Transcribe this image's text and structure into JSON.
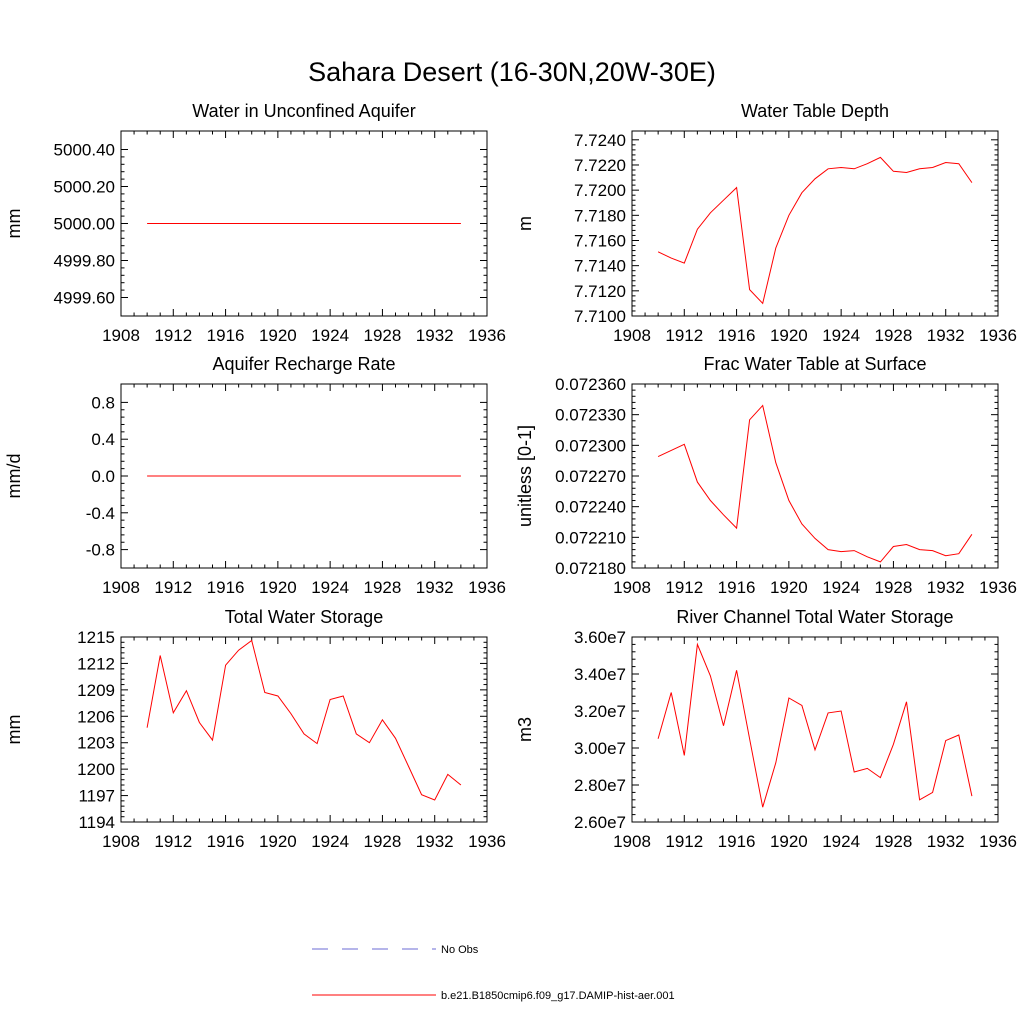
{
  "title": "Sahara Desert (16-30N,20W-30E)",
  "legend": [
    {
      "label": "No Obs",
      "color": "#6b6bd6",
      "style": "dashed"
    },
    {
      "label": "b.e21.B1850cmip6.f09_g17.DAMIP-hist-aer.001",
      "color": "#ff0000",
      "style": "solid"
    }
  ],
  "chart_data": [
    {
      "type": "line",
      "title": "Water in Unconfined Aquifer",
      "ylabel": "mm",
      "xlim": [
        1908,
        1936
      ],
      "xticks": [
        1908,
        1912,
        1916,
        1920,
        1924,
        1928,
        1932,
        1936
      ],
      "xtick_labels": [
        "1908",
        "1912",
        "1916",
        "1920",
        "1924",
        "1928",
        "1932",
        "1936"
      ],
      "ylim": [
        4999.5,
        5000.5
      ],
      "yticks": [
        4999.6,
        4999.8,
        5000.0,
        5000.2,
        5000.4
      ],
      "ytick_labels": [
        "4999.60",
        "4999.80",
        "5000.00",
        "5000.20",
        "5000.40"
      ],
      "x": [
        1910,
        1911,
        1912,
        1913,
        1914,
        1915,
        1916,
        1917,
        1918,
        1919,
        1920,
        1921,
        1922,
        1923,
        1924,
        1925,
        1926,
        1927,
        1928,
        1929,
        1930,
        1931,
        1932,
        1933,
        1934
      ],
      "series": [
        {
          "color": "#ff0000",
          "values": [
            5000.0,
            5000.0,
            5000.0,
            5000.0,
            5000.0,
            5000.0,
            5000.0,
            5000.0,
            5000.0,
            5000.0,
            5000.0,
            5000.0,
            5000.0,
            5000.0,
            5000.0,
            5000.0,
            5000.0,
            5000.0,
            5000.0,
            5000.0,
            5000.0,
            5000.0,
            5000.0,
            5000.0,
            5000.0
          ]
        }
      ]
    },
    {
      "type": "line",
      "title": "Water Table Depth",
      "ylabel": "m",
      "xlim": [
        1908,
        1936
      ],
      "xticks": [
        1908,
        1912,
        1916,
        1920,
        1924,
        1928,
        1932,
        1936
      ],
      "xtick_labels": [
        "1908",
        "1912",
        "1916",
        "1920",
        "1924",
        "1928",
        "1932",
        "1936"
      ],
      "ylim": [
        7.71,
        7.7247
      ],
      "yticks": [
        7.71,
        7.712,
        7.714,
        7.716,
        7.718,
        7.72,
        7.722,
        7.724
      ],
      "ytick_labels": [
        "7.7100",
        "7.7120",
        "7.7140",
        "7.7160",
        "7.7180",
        "7.7200",
        "7.7220",
        "7.7240"
      ],
      "x": [
        1910,
        1911,
        1912,
        1913,
        1914,
        1915,
        1916,
        1917,
        1918,
        1919,
        1920,
        1921,
        1922,
        1923,
        1924,
        1925,
        1926,
        1927,
        1928,
        1929,
        1930,
        1931,
        1932,
        1933,
        1934
      ],
      "series": [
        {
          "color": "#ff0000",
          "values": [
            7.7151,
            7.7146,
            7.7142,
            7.7169,
            7.7182,
            7.7192,
            7.7202,
            7.7121,
            7.711,
            7.7154,
            7.718,
            7.7198,
            7.7209,
            7.7217,
            7.7218,
            7.7217,
            7.7221,
            7.7226,
            7.7215,
            7.7214,
            7.7217,
            7.7218,
            7.7222,
            7.7221,
            7.7206
          ]
        }
      ]
    },
    {
      "type": "line",
      "title": "Aquifer Recharge Rate",
      "ylabel": "mm/d",
      "xlim": [
        1908,
        1936
      ],
      "xticks": [
        1908,
        1912,
        1916,
        1920,
        1924,
        1928,
        1932,
        1936
      ],
      "xtick_labels": [
        "1908",
        "1912",
        "1916",
        "1920",
        "1924",
        "1928",
        "1932",
        "1936"
      ],
      "ylim": [
        -1.0,
        1.0
      ],
      "yticks": [
        -0.8,
        -0.4,
        0.0,
        0.4,
        0.8
      ],
      "ytick_labels": [
        "-0.8",
        "-0.4",
        "0.0",
        "0.4",
        "0.8"
      ],
      "x": [
        1910,
        1911,
        1912,
        1913,
        1914,
        1915,
        1916,
        1917,
        1918,
        1919,
        1920,
        1921,
        1922,
        1923,
        1924,
        1925,
        1926,
        1927,
        1928,
        1929,
        1930,
        1931,
        1932,
        1933,
        1934
      ],
      "series": [
        {
          "color": "#ff0000",
          "values": [
            0,
            0,
            0,
            0,
            0,
            0,
            0,
            0,
            0,
            0,
            0,
            0,
            0,
            0,
            0,
            0,
            0,
            0,
            0,
            0,
            0,
            0,
            0,
            0,
            0
          ]
        }
      ]
    },
    {
      "type": "line",
      "title": "Frac Water Table at Surface",
      "ylabel": "unitless [0-1]",
      "xlim": [
        1908,
        1936
      ],
      "xticks": [
        1908,
        1912,
        1916,
        1920,
        1924,
        1928,
        1932,
        1936
      ],
      "xtick_labels": [
        "1908",
        "1912",
        "1916",
        "1920",
        "1924",
        "1928",
        "1932",
        "1936"
      ],
      "ylim": [
        0.07218,
        0.07236
      ],
      "yticks": [
        0.07218,
        0.07221,
        0.07224,
        0.07227,
        0.0723,
        0.07233,
        0.07236
      ],
      "ytick_labels": [
        "0.072180",
        "0.072210",
        "0.072240",
        "0.072270",
        "0.072300",
        "0.072330",
        "0.072360"
      ],
      "x": [
        1910,
        1911,
        1912,
        1913,
        1914,
        1915,
        1916,
        1917,
        1918,
        1919,
        1920,
        1921,
        1922,
        1923,
        1924,
        1925,
        1926,
        1927,
        1928,
        1929,
        1930,
        1931,
        1932,
        1933,
        1934
      ],
      "series": [
        {
          "color": "#ff0000",
          "values": [
            0.072289,
            0.072295,
            0.072301,
            0.072264,
            0.072246,
            0.072232,
            0.072219,
            0.072325,
            0.072339,
            0.072283,
            0.072246,
            0.072223,
            0.072209,
            0.072198,
            0.072196,
            0.072197,
            0.072191,
            0.072186,
            0.072201,
            0.072203,
            0.072198,
            0.072197,
            0.072192,
            0.072194,
            0.072213
          ]
        }
      ]
    },
    {
      "type": "line",
      "title": "Total Water Storage",
      "ylabel": "mm",
      "xlim": [
        1908,
        1936
      ],
      "xticks": [
        1908,
        1912,
        1916,
        1920,
        1924,
        1928,
        1932,
        1936
      ],
      "xtick_labels": [
        "1908",
        "1912",
        "1916",
        "1920",
        "1924",
        "1928",
        "1932",
        "1936"
      ],
      "ylim": [
        1194,
        1215
      ],
      "yticks": [
        1194,
        1197,
        1200,
        1203,
        1206,
        1209,
        1212,
        1215
      ],
      "ytick_labels": [
        "1194",
        "1197",
        "1200",
        "1203",
        "1206",
        "1209",
        "1212",
        "1215"
      ],
      "x": [
        1910,
        1911,
        1912,
        1913,
        1914,
        1915,
        1916,
        1917,
        1918,
        1919,
        1920,
        1921,
        1922,
        1923,
        1924,
        1925,
        1926,
        1927,
        1928,
        1929,
        1930,
        1931,
        1932,
        1933,
        1934
      ],
      "series": [
        {
          "color": "#ff0000",
          "values": [
            1204.7,
            1212.9,
            1206.4,
            1208.9,
            1205.3,
            1203.3,
            1211.8,
            1213.5,
            1214.6,
            1208.7,
            1208.3,
            1206.3,
            1204.0,
            1202.9,
            1207.9,
            1208.3,
            1204.0,
            1203.0,
            1205.6,
            1203.5,
            1200.3,
            1197.1,
            1196.5,
            1199.4,
            1198.2
          ]
        }
      ]
    },
    {
      "type": "line",
      "title": "River Channel Total Water Storage",
      "ylabel": "m3",
      "xlim": [
        1908,
        1936
      ],
      "xticks": [
        1908,
        1912,
        1916,
        1920,
        1924,
        1928,
        1932,
        1936
      ],
      "xtick_labels": [
        "1908",
        "1912",
        "1916",
        "1920",
        "1924",
        "1928",
        "1932",
        "1936"
      ],
      "ylim": [
        26000000,
        36000000
      ],
      "yticks": [
        26000000,
        28000000,
        30000000,
        32000000,
        34000000,
        36000000
      ],
      "ytick_labels": [
        "2.60e7",
        "2.80e7",
        "3.00e7",
        "3.20e7",
        "3.40e7",
        "3.60e7"
      ],
      "x": [
        1910,
        1911,
        1912,
        1913,
        1914,
        1915,
        1916,
        1917,
        1918,
        1919,
        1920,
        1921,
        1922,
        1923,
        1924,
        1925,
        1926,
        1927,
        1928,
        1929,
        1930,
        1931,
        1932,
        1933,
        1934
      ],
      "series": [
        {
          "color": "#ff0000",
          "values": [
            30500000,
            33000000,
            29600000,
            35600000,
            33900000,
            31200000,
            34200000,
            30500000,
            26800000,
            29200000,
            32700000,
            32300000,
            29900000,
            31900000,
            32000000,
            28700000,
            28900000,
            28400000,
            30200000,
            32500000,
            27200000,
            27600000,
            30400000,
            30700000,
            27400000
          ]
        }
      ]
    }
  ]
}
